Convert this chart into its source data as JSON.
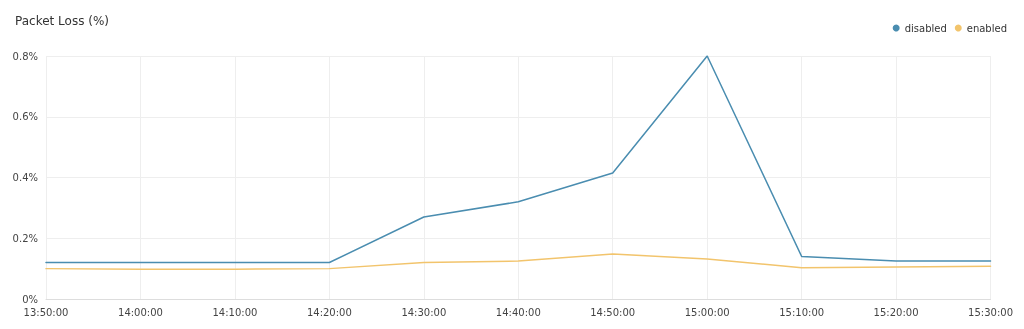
{
  "chart_data": {
    "type": "line",
    "title": "Packet Loss (%)",
    "x": [
      13.8333,
      14,
      14.1667,
      14.3333,
      14.5,
      14.6667,
      14.8333,
      15,
      15.1667,
      15.3333,
      15.5
    ],
    "series": [
      {
        "name": "disabled",
        "color": "#4a8db0",
        "values": [
          0.12,
          0.12,
          0.12,
          0.12,
          0.27,
          0.32,
          0.415,
          0.8,
          0.14,
          0.125,
          0.125
        ]
      },
      {
        "name": "enabled",
        "color": "#f2c46c",
        "values": [
          0.1,
          0.098,
          0.098,
          0.1,
          0.12,
          0.125,
          0.148,
          0.132,
          0.103,
          0.105,
          0.108
        ]
      }
    ],
    "xlim": [
      13.8333,
      15.5
    ],
    "xticks": [
      {
        "value": 13.8333,
        "label": "13:50:00"
      },
      {
        "value": 14,
        "label": "14:00:00"
      },
      {
        "value": 14.1667,
        "label": "14:10:00"
      },
      {
        "value": 14.3333,
        "label": "14:20:00"
      },
      {
        "value": 14.5,
        "label": "14:30:00"
      },
      {
        "value": 14.6667,
        "label": "14:40:00"
      },
      {
        "value": 14.8333,
        "label": "14:50:00"
      },
      {
        "value": 15,
        "label": "15:00:00"
      },
      {
        "value": 15.1667,
        "label": "15:10:00"
      },
      {
        "value": 15.3333,
        "label": "15:20:00"
      },
      {
        "value": 15.5,
        "label": "15:30:00"
      }
    ],
    "ylim": [
      0,
      0.8
    ],
    "yticks": [
      {
        "value": 0,
        "label": "0%"
      },
      {
        "value": 0.2,
        "label": "0.2%"
      },
      {
        "value": 0.4,
        "label": "0.4%"
      },
      {
        "value": 0.6,
        "label": "0.6%"
      },
      {
        "value": 0.8,
        "label": "0.8%"
      }
    ],
    "grid": true,
    "legend": "top right",
    "marker": "none",
    "line_style": "solid"
  }
}
